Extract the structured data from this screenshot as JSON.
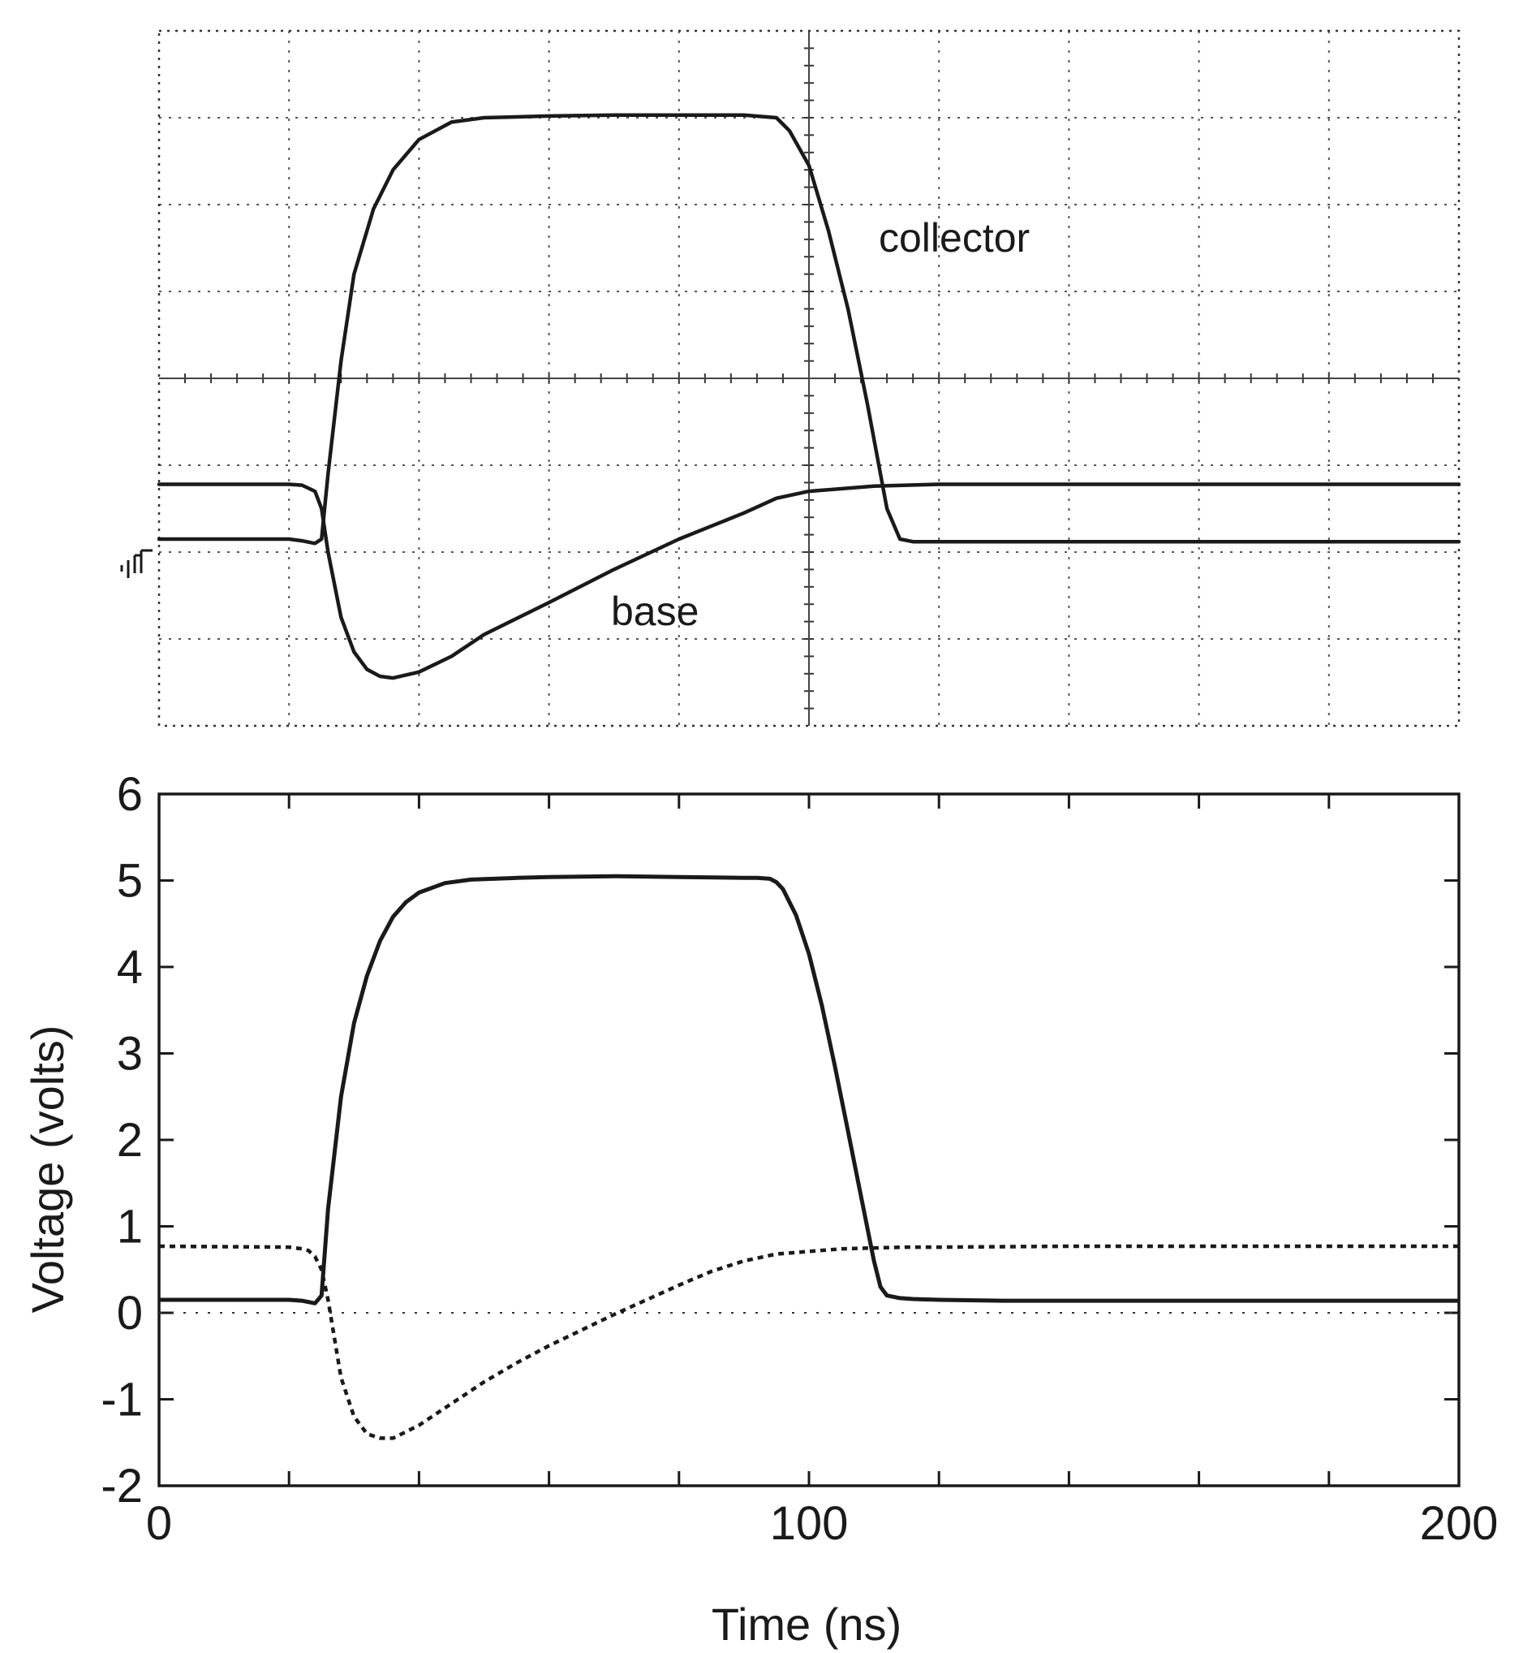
{
  "chart_data": [
    {
      "type": "line",
      "title": "",
      "kind": "oscilloscope trace",
      "xlabel": "",
      "ylabel": "",
      "xlim": [
        0,
        200
      ],
      "ylim": [
        -2,
        6
      ],
      "grid": true,
      "grid_divisions": {
        "x": 10,
        "y": 8
      },
      "ground_marker": "ground-reference-symbol",
      "annotations": [
        {
          "text": "collector",
          "series": "collector"
        },
        {
          "text": "base",
          "series": "base"
        }
      ],
      "series": [
        {
          "name": "collector",
          "style": "solid",
          "x": [
            0,
            20,
            22,
            24,
            25,
            26,
            28,
            30,
            33,
            36,
            40,
            45,
            50,
            60,
            70,
            80,
            90,
            95,
            97,
            100,
            103,
            106,
            109,
            111,
            112,
            114,
            116,
            120,
            140,
            160,
            180,
            200
          ],
          "y": [
            0.15,
            0.15,
            0.13,
            0.1,
            0.15,
            0.9,
            2.2,
            3.2,
            3.95,
            4.4,
            4.75,
            4.95,
            5.0,
            5.02,
            5.03,
            5.03,
            5.03,
            5.0,
            4.85,
            4.45,
            3.7,
            2.8,
            1.7,
            0.9,
            0.5,
            0.15,
            0.12,
            0.12,
            0.12,
            0.12,
            0.12,
            0.12
          ]
        },
        {
          "name": "base",
          "style": "dotted",
          "x": [
            0,
            20,
            22,
            24,
            25,
            26,
            28,
            30,
            32,
            34,
            36,
            40,
            45,
            50,
            60,
            70,
            80,
            90,
            95,
            100,
            110,
            120,
            140,
            160,
            180,
            200
          ],
          "y": [
            0.78,
            0.78,
            0.77,
            0.7,
            0.5,
            0.0,
            -0.75,
            -1.15,
            -1.35,
            -1.43,
            -1.45,
            -1.38,
            -1.2,
            -0.95,
            -0.58,
            -0.2,
            0.15,
            0.45,
            0.62,
            0.7,
            0.76,
            0.78,
            0.78,
            0.78,
            0.78,
            0.78
          ]
        }
      ]
    },
    {
      "type": "line",
      "title": "",
      "kind": "simulation",
      "xlabel": "Time (ns)",
      "ylabel": "Voltage (volts)",
      "xlim": [
        0,
        200
      ],
      "ylim": [
        -2,
        6
      ],
      "x_ticks": [
        0,
        100,
        200
      ],
      "x_tick_labels": [
        "0",
        "100",
        "200"
      ],
      "x_minor_ticks": [
        20,
        40,
        60,
        80,
        120,
        140,
        160,
        180
      ],
      "y_ticks": [
        -2,
        -1,
        0,
        1,
        2,
        3,
        4,
        5,
        6
      ],
      "y_tick_labels": [
        "-2",
        "-1",
        "0",
        "1",
        "2",
        "3",
        "4",
        "5",
        "6"
      ],
      "zero_line": "dashed",
      "legend": "none",
      "series": [
        {
          "name": "collector",
          "style": "solid",
          "x": [
            0,
            20,
            22,
            24,
            25,
            26,
            28,
            30,
            32,
            34,
            36,
            38,
            40,
            44,
            48,
            55,
            60,
            70,
            80,
            90,
            92,
            94,
            95,
            96,
            98,
            100,
            102,
            104,
            106,
            108,
            110,
            111,
            112,
            114,
            116,
            120,
            130,
            150,
            180,
            200
          ],
          "y": [
            0.15,
            0.15,
            0.14,
            0.11,
            0.2,
            1.2,
            2.5,
            3.35,
            3.9,
            4.3,
            4.58,
            4.75,
            4.86,
            4.97,
            5.01,
            5.03,
            5.04,
            5.05,
            5.04,
            5.03,
            5.03,
            5.02,
            4.98,
            4.9,
            4.6,
            4.15,
            3.55,
            2.85,
            2.1,
            1.35,
            0.6,
            0.3,
            0.2,
            0.17,
            0.16,
            0.15,
            0.14,
            0.14,
            0.14,
            0.14
          ]
        },
        {
          "name": "base",
          "style": "dotted",
          "x": [
            0,
            20,
            22,
            23,
            24,
            25,
            26,
            27,
            28,
            30,
            32,
            34,
            36,
            40,
            45,
            50,
            55,
            60,
            65,
            70,
            75,
            80,
            85,
            90,
            95,
            100,
            105,
            110,
            115,
            120,
            140,
            160,
            180,
            200
          ],
          "y": [
            0.77,
            0.76,
            0.74,
            0.72,
            0.65,
            0.5,
            0.15,
            -0.3,
            -0.75,
            -1.2,
            -1.4,
            -1.45,
            -1.45,
            -1.3,
            -1.05,
            -0.8,
            -0.58,
            -0.38,
            -0.2,
            -0.02,
            0.15,
            0.32,
            0.48,
            0.6,
            0.68,
            0.71,
            0.74,
            0.75,
            0.76,
            0.76,
            0.77,
            0.77,
            0.77,
            0.77
          ]
        }
      ]
    }
  ]
}
